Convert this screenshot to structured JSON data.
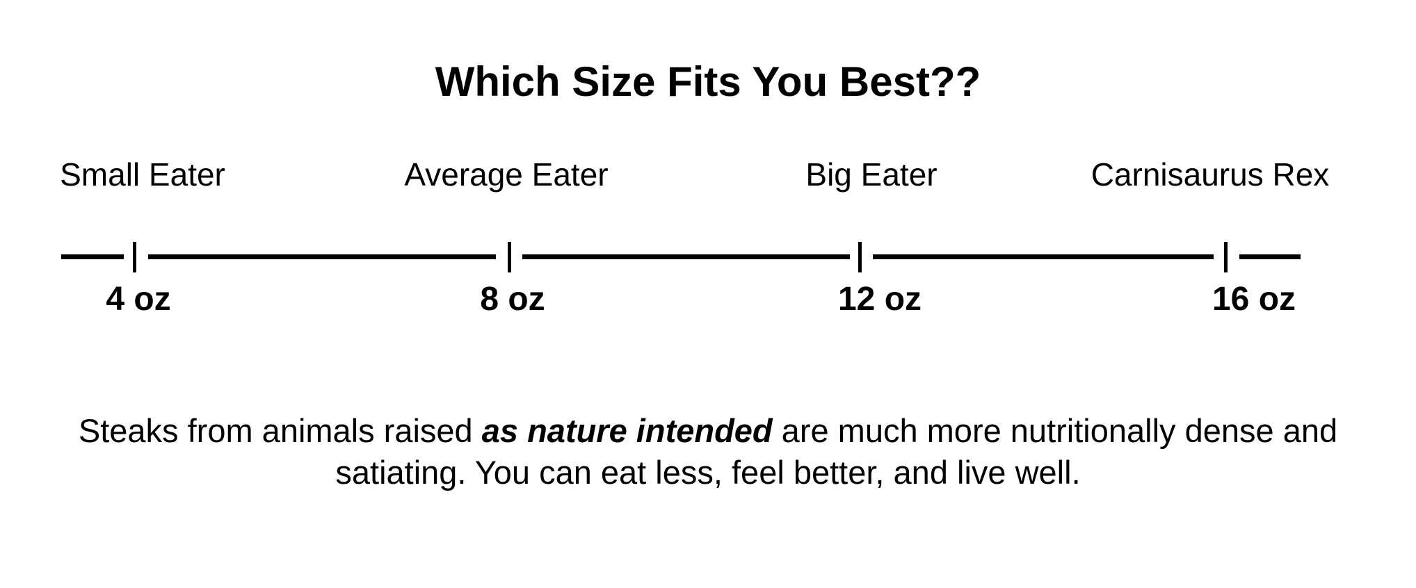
{
  "title": "Which Size Fits You Best??",
  "scale": {
    "stations": [
      {
        "label": "Small Eater",
        "size": "4 oz"
      },
      {
        "label": "Average Eater",
        "size": "8 oz"
      },
      {
        "label": "Big Eater",
        "size": "12 oz"
      },
      {
        "label": "Carnisaurus Rex",
        "size": "16 oz"
      }
    ]
  },
  "footnote": {
    "pre": "Steaks from animals raised ",
    "emphasis": "as nature intended",
    "post": " are much more nutritionally dense and satiating. You can eat less, feel better, and live well."
  },
  "colors": {
    "text": "#000000",
    "background": "#ffffff"
  }
}
